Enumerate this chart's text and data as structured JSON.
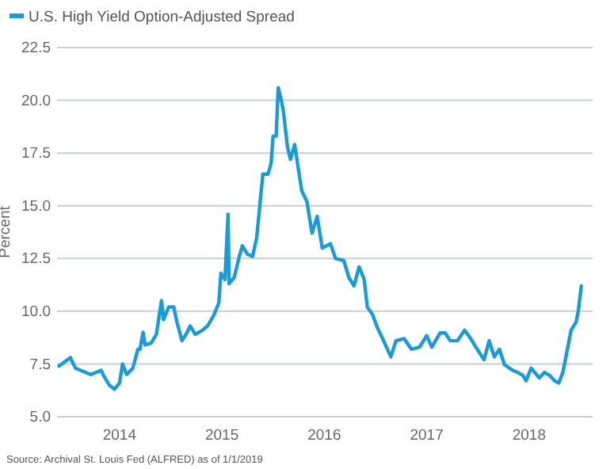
{
  "chart_data": {
    "type": "line",
    "ylabel": "Percent",
    "legend": "top left",
    "grid": "y",
    "annotations": [
      "Source: Archival St. Louis Fed (ALFRED) as of 1/1/2019"
    ],
    "xlim": [
      2013.39,
      2018.62
    ],
    "xticks": [
      2014,
      2015,
      2016,
      2017,
      2018
    ],
    "ylim": [
      5,
      22.5
    ],
    "yticks": [
      {
        "value": 5,
        "label": "5.0"
      },
      {
        "value": 7.5,
        "label": "7.5"
      },
      {
        "value": 10,
        "label": "10.0"
      },
      {
        "value": 12.5,
        "label": "12.5"
      },
      {
        "value": 15,
        "label": "15.0"
      },
      {
        "value": 17.5,
        "label": "17.5"
      },
      {
        "value": 20,
        "label": "20.0"
      },
      {
        "value": 22.5,
        "label": "22.5"
      }
    ],
    "x": [
      2013.41,
      2013.52,
      2013.57,
      2013.72,
      2013.82,
      2013.85,
      2013.9,
      2013.95,
      2014.0,
      2014.03,
      2014.07,
      2014.13,
      2014.18,
      2014.2,
      2014.23,
      2014.25,
      2014.31,
      2014.36,
      2014.41,
      2014.43,
      2014.48,
      2014.53,
      2014.56,
      2014.61,
      2014.66,
      2014.69,
      2014.74,
      2014.81,
      2014.86,
      2014.92,
      2014.97,
      2014.99,
      2015.03,
      2015.06,
      2015.07,
      2015.12,
      2015.17,
      2015.2,
      2015.25,
      2015.3,
      2015.34,
      2015.37,
      2015.4,
      2015.45,
      2015.48,
      2015.5,
      2015.53,
      2015.55,
      2015.58,
      2015.6,
      2015.64,
      2015.67,
      2015.71,
      2015.78,
      2015.83,
      2015.88,
      2015.93,
      2015.98,
      2016.06,
      2016.11,
      2016.19,
      2016.24,
      2016.29,
      2016.34,
      2016.39,
      2016.42,
      2016.47,
      2016.52,
      2016.57,
      2016.65,
      2016.7,
      2016.78,
      2016.85,
      2016.93,
      2017.0,
      2017.05,
      2017.13,
      2017.18,
      2017.23,
      2017.3,
      2017.37,
      2017.43,
      2017.48,
      2017.56,
      2017.61,
      2017.66,
      2017.71,
      2017.76,
      2017.84,
      2017.89,
      2017.94,
      2017.97,
      2018.02,
      2018.1,
      2018.15,
      2018.2,
      2018.25,
      2018.29,
      2018.33,
      2018.36,
      2018.41,
      2018.46,
      2018.48,
      2018.51
    ],
    "series": [
      {
        "name": "U.S. High Yield Option-Adjusted Spread",
        "color": "#1a9ad6",
        "values": [
          7.4,
          7.8,
          7.3,
          7.0,
          7.2,
          6.9,
          6.5,
          6.3,
          6.6,
          7.5,
          7.0,
          7.3,
          8.2,
          8.2,
          9.0,
          8.4,
          8.5,
          8.9,
          10.5,
          9.6,
          10.2,
          10.2,
          9.5,
          8.6,
          9.0,
          9.3,
          8.9,
          9.1,
          9.3,
          9.8,
          10.4,
          11.8,
          11.5,
          14.6,
          11.3,
          11.6,
          12.6,
          13.1,
          12.7,
          12.6,
          13.5,
          15.0,
          16.5,
          16.5,
          17.0,
          18.3,
          18.3,
          20.6,
          20.0,
          19.5,
          17.8,
          17.2,
          17.9,
          15.7,
          15.2,
          13.7,
          14.5,
          13.0,
          13.2,
          12.5,
          12.4,
          11.6,
          11.2,
          12.1,
          11.5,
          10.2,
          9.85,
          9.2,
          8.7,
          7.84,
          8.6,
          8.7,
          8.2,
          8.3,
          8.84,
          8.3,
          8.97,
          8.97,
          8.6,
          8.6,
          9.1,
          8.7,
          8.3,
          7.7,
          8.6,
          7.84,
          8.2,
          7.46,
          7.2,
          7.1,
          6.96,
          6.7,
          7.3,
          6.84,
          7.1,
          6.96,
          6.7,
          6.6,
          7.1,
          7.84,
          9.1,
          9.5,
          10.0,
          11.2
        ]
      }
    ]
  }
}
